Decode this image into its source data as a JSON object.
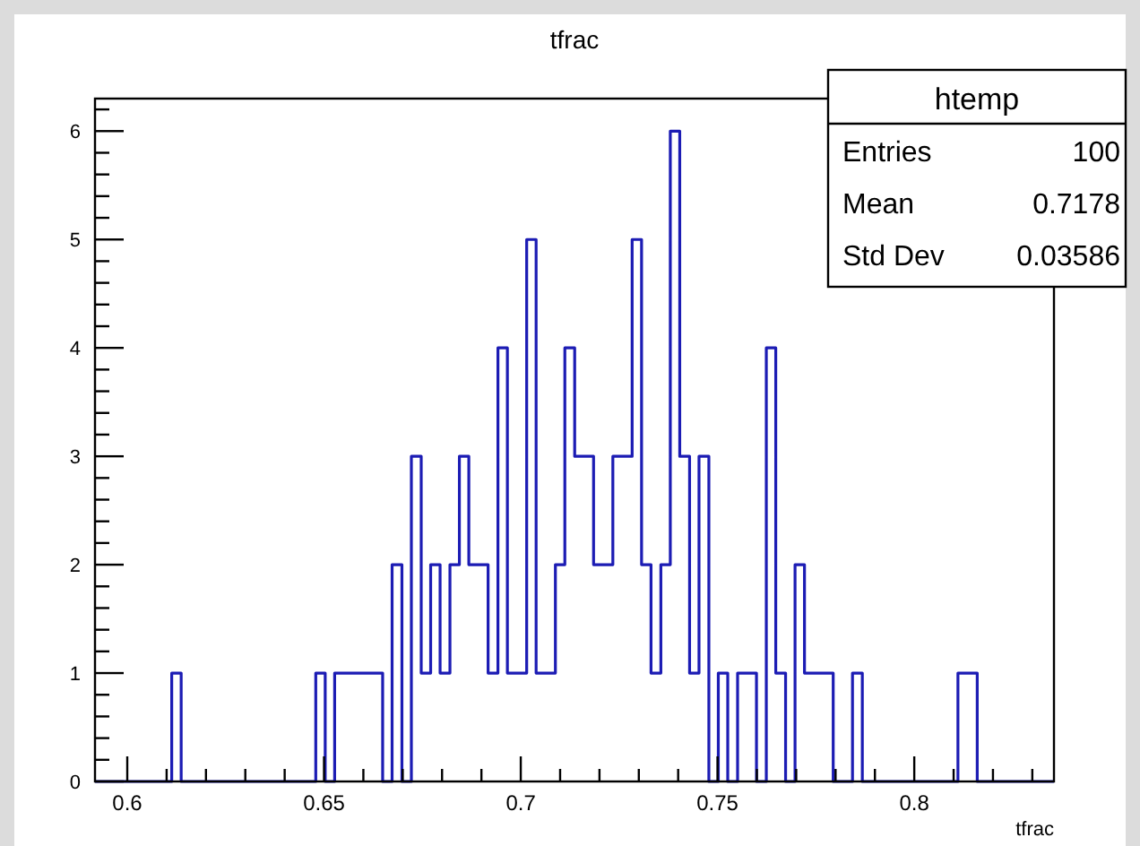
{
  "chart_data": {
    "type": "histogram",
    "title": "tfrac",
    "xlabel": "tfrac",
    "bins": [
      0.5918,
      0.5942,
      0.5967,
      0.5991,
      0.6015,
      0.604,
      0.6064,
      0.6089,
      0.6113,
      0.6137,
      0.6162,
      0.6186,
      0.621,
      0.6235,
      0.6259,
      0.6284,
      0.6308,
      0.6332,
      0.6357,
      0.6381,
      0.6405,
      0.643,
      0.6454,
      0.6479,
      0.6503,
      0.6527,
      0.6552,
      0.6576,
      0.66,
      0.6625,
      0.6649,
      0.6673,
      0.6698,
      0.6722,
      0.6747,
      0.6771,
      0.6795,
      0.682,
      0.6844,
      0.6868,
      0.6893,
      0.6917,
      0.6942,
      0.6966,
      0.699,
      0.7015,
      0.7039,
      0.7063,
      0.7088,
      0.7112,
      0.7137,
      0.7161,
      0.7185,
      0.721,
      0.7234,
      0.7258,
      0.7283,
      0.7307,
      0.7331,
      0.7356,
      0.738,
      0.7404,
      0.7429,
      0.7453,
      0.7478,
      0.7502,
      0.7526,
      0.7551,
      0.7575,
      0.7599,
      0.7624,
      0.7648,
      0.7673,
      0.7697,
      0.7721,
      0.7746,
      0.777,
      0.7794,
      0.7819,
      0.7843,
      0.7868,
      0.7892,
      0.7916,
      0.7941,
      0.7965,
      0.7989,
      0.8014,
      0.8038,
      0.8063,
      0.8087,
      0.8111,
      0.8136,
      0.816,
      0.8184,
      0.8209,
      0.8233,
      0.8257,
      0.8282,
      0.8306,
      0.8331,
      0.8355
    ],
    "values": [
      0,
      0,
      0,
      0,
      0,
      0,
      0,
      0,
      1,
      0,
      0,
      0,
      0,
      0,
      0,
      0,
      0,
      0,
      0,
      0,
      0,
      0,
      0,
      1,
      0,
      1,
      1,
      1,
      1,
      1,
      0,
      2,
      0,
      3,
      1,
      2,
      1,
      2,
      3,
      2,
      2,
      1,
      4,
      1,
      1,
      5,
      1,
      1,
      2,
      4,
      3,
      3,
      2,
      2,
      3,
      3,
      5,
      2,
      1,
      2,
      6,
      3,
      1,
      3,
      0,
      1,
      0,
      1,
      1,
      0,
      4,
      1,
      0,
      2,
      1,
      1,
      1,
      0,
      0,
      1,
      0,
      0,
      0,
      0,
      0,
      0,
      0,
      0,
      0,
      0,
      1,
      1,
      0,
      0,
      0,
      0,
      0,
      0,
      0,
      0
    ],
    "color": "#1c1cb4",
    "xlim": [
      0.5918,
      0.8355
    ],
    "xticks": [
      0.6,
      {
        "value": 0.61,
        "label": null
      },
      {
        "value": 0.62,
        "label": null
      },
      {
        "value": 0.63,
        "label": null
      },
      {
        "value": 0.64,
        "label": null
      },
      0.65,
      {
        "value": 0.66,
        "label": null
      },
      {
        "value": 0.67,
        "label": null
      },
      {
        "value": 0.68,
        "label": null
      },
      {
        "value": 0.69,
        "label": null
      },
      0.7,
      {
        "value": 0.71,
        "label": null
      },
      {
        "value": 0.72,
        "label": null
      },
      {
        "value": 0.73,
        "label": null
      },
      {
        "value": 0.74,
        "label": null
      },
      0.75,
      {
        "value": 0.76,
        "label": null
      },
      {
        "value": 0.77,
        "label": null
      },
      {
        "value": 0.78,
        "label": null
      },
      {
        "value": 0.79,
        "label": null
      },
      0.8,
      {
        "value": 0.81,
        "label": null
      },
      {
        "value": 0.82,
        "label": null
      },
      {
        "value": 0.83,
        "label": null
      }
    ],
    "ylim": [
      0,
      6.3
    ],
    "yticks": [
      0,
      {
        "value": 0.2,
        "label": null
      },
      {
        "value": 0.4,
        "label": null
      },
      {
        "value": 0.6,
        "label": null
      },
      {
        "value": 0.8,
        "label": null
      },
      1,
      {
        "value": 1.2,
        "label": null
      },
      {
        "value": 1.4,
        "label": null
      },
      {
        "value": 1.6,
        "label": null
      },
      {
        "value": 1.8,
        "label": null
      },
      2,
      {
        "value": 2.2,
        "label": null
      },
      {
        "value": 2.4,
        "label": null
      },
      {
        "value": 2.6,
        "label": null
      },
      {
        "value": 2.8,
        "label": null
      },
      3,
      {
        "value": 3.2,
        "label": null
      },
      {
        "value": 3.4,
        "label": null
      },
      {
        "value": 3.6,
        "label": null
      },
      {
        "value": 3.8,
        "label": null
      },
      4,
      {
        "value": 4.2,
        "label": null
      },
      {
        "value": 4.4,
        "label": null
      },
      {
        "value": 4.6,
        "label": null
      },
      {
        "value": 4.8,
        "label": null
      },
      5,
      {
        "value": 5.2,
        "label": null
      },
      {
        "value": 5.4,
        "label": null
      },
      {
        "value": 5.6,
        "label": null
      },
      {
        "value": 5.8,
        "label": null
      },
      6,
      {
        "value": 6.2,
        "label": null
      }
    ],
    "grid": false,
    "annotations": [
      "htemp",
      "Entries",
      "100",
      "Mean",
      "0.7178",
      "Std Dev",
      "0.03586"
    ]
  }
}
